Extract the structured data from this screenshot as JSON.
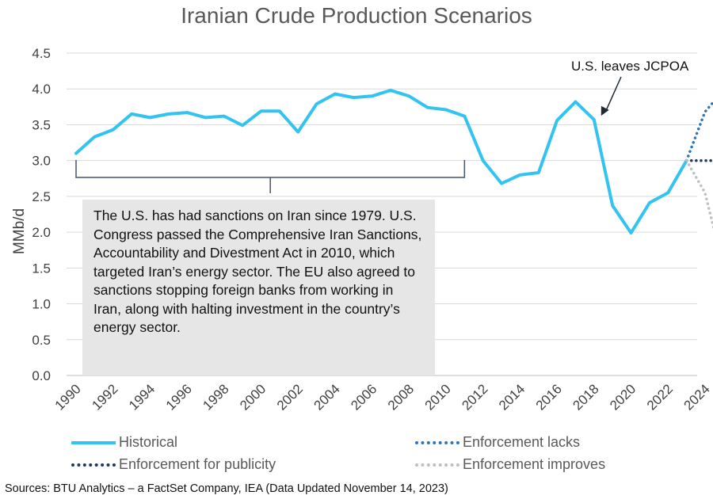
{
  "chart_data": {
    "type": "line",
    "title": "Iranian Crude Production Scenarios",
    "ylabel": "MMb/d",
    "ylim": [
      0,
      4.5
    ],
    "xlim": [
      1990,
      2025
    ],
    "y_ticks": [
      "0.0",
      "0.5",
      "1.0",
      "1.5",
      "2.0",
      "2.5",
      "3.0",
      "3.5",
      "4.0",
      "4.5"
    ],
    "x_ticks": [
      "1990",
      "1992",
      "1994",
      "1996",
      "1998",
      "2000",
      "2002",
      "2004",
      "2006",
      "2008",
      "2010",
      "2012",
      "2014",
      "2016",
      "2018",
      "2020",
      "2022",
      "2024"
    ],
    "grid": true,
    "legend_position": "bottom",
    "series": [
      {
        "name": "Historical",
        "color": "#33c3f0",
        "style": "solid",
        "x": [
          1990,
          1991,
          1992,
          1993,
          1994,
          1995,
          1996,
          1997,
          1998,
          1999,
          2000,
          2001,
          2002,
          2003,
          2004,
          2005,
          2006,
          2007,
          2008,
          2009,
          2010,
          2011,
          2012,
          2013,
          2014,
          2015,
          2016,
          2017,
          2018,
          2019,
          2020,
          2021,
          2022,
          2023
        ],
        "y": [
          3.1,
          3.33,
          3.43,
          3.65,
          3.6,
          3.65,
          3.67,
          3.6,
          3.62,
          3.49,
          3.69,
          3.69,
          3.4,
          3.79,
          3.93,
          3.88,
          3.9,
          3.98,
          3.9,
          3.74,
          3.71,
          3.62,
          3.0,
          2.68,
          2.8,
          2.83,
          3.56,
          3.82,
          3.57,
          2.37,
          1.99,
          2.41,
          2.55,
          3.0
        ]
      },
      {
        "name": "Enforcement lacks",
        "color": "#2e75b6",
        "style": "dotted",
        "x": [
          2023,
          2024,
          2025
        ],
        "y": [
          3.0,
          3.68,
          3.98
        ]
      },
      {
        "name": "Enforcement for publicity",
        "color": "#1f3864",
        "style": "dotted",
        "x": [
          2023,
          2024,
          2025
        ],
        "y": [
          3.0,
          3.0,
          3.0
        ]
      },
      {
        "name": "Enforcement improves",
        "color": "#bfbfbf",
        "style": "dotted",
        "x": [
          2023,
          2024,
          2025
        ],
        "y": [
          3.0,
          2.55,
          1.5
        ]
      }
    ],
    "annotations": {
      "jcpoa_label": "U.S. leaves JCPOA",
      "sanctions_text": "The U.S. has had sanctions on Iran since 1979. U.S. Congress passed the Comprehensive Iran Sanctions, Accountability and Divestment Act in 2010,  which targeted Iran’s energy sector. The EU also agreed to sanctions stopping foreign banks from working in Iran, along with halting investment in the country’s energy sector.",
      "bracket_range": [
        1990,
        2011
      ],
      "jcpoa_point": [
        2018,
        3.57
      ]
    }
  },
  "source": "Sources: BTU Analytics – a FactSet Company, IEA (Data Updated November 14, 2023)"
}
